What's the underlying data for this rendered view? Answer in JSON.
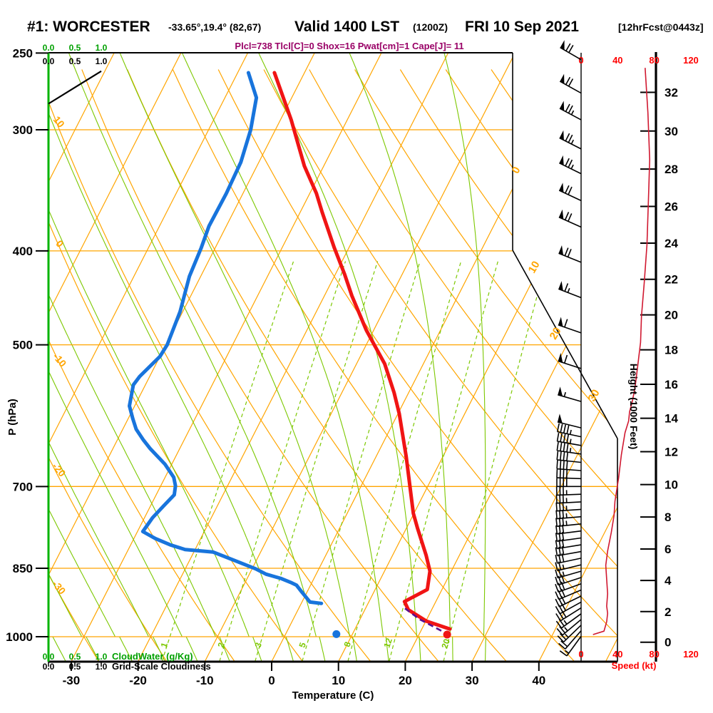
{
  "header": {
    "station": "#1: WORCESTER",
    "coords": "-33.65°,19.4° (82,67)",
    "valid": "Valid 1400 LST",
    "valid_z": "(1200Z)",
    "date": "FRI 10 Sep 2021",
    "fcst": "[12hrFcst@0443z]"
  },
  "params_line": "Plcl=738 Tlcl[C]=0 Shox=16 Pwat[cm]=1 Cape[J]= 11",
  "colors": {
    "grid_orange": "#FFA500",
    "grid_green": "#7CC800",
    "axis_green": "#00B400",
    "text_green": "#00A000",
    "temp_red": "#F01414",
    "dew_blue": "#1874DC",
    "speed_trace": "#D01830",
    "speed_labels": "#FF0000",
    "params_purple": "#990066",
    "parcel_purple": "#5A1090",
    "barb_black": "#000000"
  },
  "axes": {
    "pressure": {
      "label": "P (hPa)",
      "ticks": [
        250,
        300,
        400,
        500,
        700,
        850,
        1000
      ]
    },
    "temperature": {
      "label": "Temperature (C)",
      "ticks": [
        -30,
        -20,
        -10,
        0,
        10,
        20,
        30,
        40
      ]
    },
    "height": {
      "label": "Height (1000 Feet)",
      "ticks": [
        0,
        2,
        4,
        6,
        8,
        10,
        12,
        14,
        16,
        18,
        20,
        22,
        24,
        26,
        28,
        30,
        32
      ]
    },
    "speed": {
      "label": "Speed (kt)",
      "ticks": [
        0,
        40,
        80,
        120
      ]
    },
    "cloudwater": {
      "label": "CloudWater (g/Kg)",
      "ticks": [
        "0.0",
        "0.5",
        "1.0"
      ]
    },
    "cloudiness": {
      "label": "Grid-Scale Cloudiness",
      "ticks": [
        "0.0",
        "0.5",
        "1.0"
      ]
    }
  },
  "chart_data": {
    "type": "skewt-log-p",
    "pressure_range_hpa": [
      250,
      1060
    ],
    "isobars_hpa": [
      300,
      400,
      500,
      700,
      850,
      1000
    ],
    "isotherm_step_c": 10,
    "isotherm_labels_c": [
      0,
      10,
      20,
      30
    ],
    "dry_adiabat_labels_c": [
      10,
      0,
      -10,
      -20,
      -30
    ],
    "mixing_ratio_lines_gkg": [
      1,
      2,
      3,
      5,
      8,
      12,
      20
    ],
    "temperature_profile_p_c": [
      [
        262,
        -44.5
      ],
      [
        293,
        -38.4
      ],
      [
        327,
        -32.9
      ],
      [
        349,
        -29.0
      ],
      [
        365,
        -26.7
      ],
      [
        397,
        -22.2
      ],
      [
        423,
        -18.6
      ],
      [
        445,
        -15.9
      ],
      [
        483,
        -11.1
      ],
      [
        500,
        -8.8
      ],
      [
        523,
        -5.8
      ],
      [
        560,
        -2.2
      ],
      [
        589,
        0.2
      ],
      [
        652,
        4.5
      ],
      [
        746,
        9.9
      ],
      [
        772,
        11.6
      ],
      [
        824,
        15.0
      ],
      [
        856,
        16.8
      ],
      [
        894,
        17.8
      ],
      [
        920,
        15.3
      ],
      [
        938,
        16.5
      ],
      [
        964,
        20.1
      ],
      [
        982,
        24.2
      ]
    ],
    "dewpoint_profile_p_c": [
      [
        262,
        -48.4
      ],
      [
        278,
        -45.3
      ],
      [
        300,
        -43.7
      ],
      [
        324,
        -42.7
      ],
      [
        349,
        -42.5
      ],
      [
        377,
        -42.6
      ],
      [
        397,
        -42.1
      ],
      [
        425,
        -41.7
      ],
      [
        462,
        -40.4
      ],
      [
        500,
        -39.8
      ],
      [
        514,
        -40.0
      ],
      [
        539,
        -41.5
      ],
      [
        550,
        -41.8
      ],
      [
        578,
        -40.8
      ],
      [
        596,
        -39.3
      ],
      [
        611,
        -38.0
      ],
      [
        626,
        -36.2
      ],
      [
        640,
        -34.4
      ],
      [
        664,
        -31.0
      ],
      [
        685,
        -28.7
      ],
      [
        699,
        -27.8
      ],
      [
        714,
        -27.3
      ],
      [
        732,
        -28.0
      ],
      [
        754,
        -28.8
      ],
      [
        779,
        -29.2
      ],
      [
        792,
        -26.8
      ],
      [
        804,
        -24.1
      ],
      [
        813,
        -21.5
      ],
      [
        818,
        -17.1
      ],
      [
        833,
        -13.6
      ],
      [
        851,
        -9.5
      ],
      [
        862,
        -7.5
      ],
      [
        871,
        -4.9
      ],
      [
        879,
        -3.2
      ],
      [
        885,
        -2.1
      ],
      [
        897,
        -1.0
      ],
      [
        909,
        0.1
      ],
      [
        921,
        1.2
      ],
      [
        924,
        3.0
      ]
    ],
    "parcel_path_p_c": [
      [
        935,
        15.9
      ],
      [
        960,
        19.0
      ],
      [
        993,
        24.1
      ]
    ],
    "surface_markers": {
      "temperature_p_c": [
        995,
        24.2
      ],
      "dewpoint_p_c": [
        994,
        7.6
      ]
    },
    "wind_speed_profile_p_kt": [
      [
        259,
        70
      ],
      [
        288,
        73
      ],
      [
        322,
        75
      ],
      [
        346,
        74
      ],
      [
        394,
        72
      ],
      [
        432,
        69
      ],
      [
        467,
        66
      ],
      [
        497,
        65
      ],
      [
        525,
        62
      ],
      [
        553,
        59
      ],
      [
        572,
        56
      ],
      [
        586,
        53
      ],
      [
        599,
        52
      ],
      [
        616,
        48
      ],
      [
        649,
        44
      ],
      [
        686,
        41
      ],
      [
        725,
        37
      ],
      [
        750,
        36
      ],
      [
        781,
        33
      ],
      [
        816,
        29
      ],
      [
        844,
        27
      ],
      [
        873,
        28
      ],
      [
        903,
        29
      ],
      [
        930,
        28
      ],
      [
        946,
        29
      ],
      [
        965,
        28
      ],
      [
        987,
        25
      ],
      [
        995,
        13
      ]
    ],
    "wind_barbs_p_dir_kt": [
      [
        254,
        300,
        70
      ],
      [
        275,
        299,
        72
      ],
      [
        293,
        298,
        75
      ],
      [
        314,
        297,
        75
      ],
      [
        333,
        296,
        73
      ],
      [
        355,
        295,
        72
      ],
      [
        378,
        294,
        70
      ],
      [
        411,
        292,
        68
      ],
      [
        447,
        291,
        65
      ],
      [
        486,
        289,
        62
      ],
      [
        529,
        288,
        58
      ],
      [
        572,
        286,
        55
      ],
      [
        609,
        284,
        50
      ],
      [
        622,
        282,
        47
      ],
      [
        635,
        280,
        45
      ],
      [
        648,
        278,
        43
      ],
      [
        661,
        276,
        41
      ],
      [
        674,
        274,
        40
      ],
      [
        687,
        272,
        39
      ],
      [
        700,
        270,
        38
      ],
      [
        713,
        268,
        37
      ],
      [
        726,
        267,
        36
      ],
      [
        739,
        266,
        35
      ],
      [
        752,
        265,
        34
      ],
      [
        765,
        264,
        33
      ],
      [
        778,
        263,
        32
      ],
      [
        791,
        262,
        31
      ],
      [
        804,
        261,
        30
      ],
      [
        817,
        260,
        29
      ],
      [
        830,
        258,
        28
      ],
      [
        843,
        256,
        27
      ],
      [
        856,
        254,
        27
      ],
      [
        869,
        252,
        28
      ],
      [
        882,
        250,
        28
      ],
      [
        895,
        247,
        29
      ],
      [
        908,
        244,
        29
      ],
      [
        921,
        241,
        28
      ],
      [
        934,
        238,
        28
      ],
      [
        947,
        234,
        27
      ],
      [
        960,
        230,
        26
      ],
      [
        973,
        226,
        24
      ],
      [
        986,
        221,
        18
      ],
      [
        999,
        216,
        13
      ]
    ],
    "cloudiness_profile_p_frac": [
      [
        282,
        0.0
      ],
      [
        261,
        1.0
      ]
    ]
  }
}
